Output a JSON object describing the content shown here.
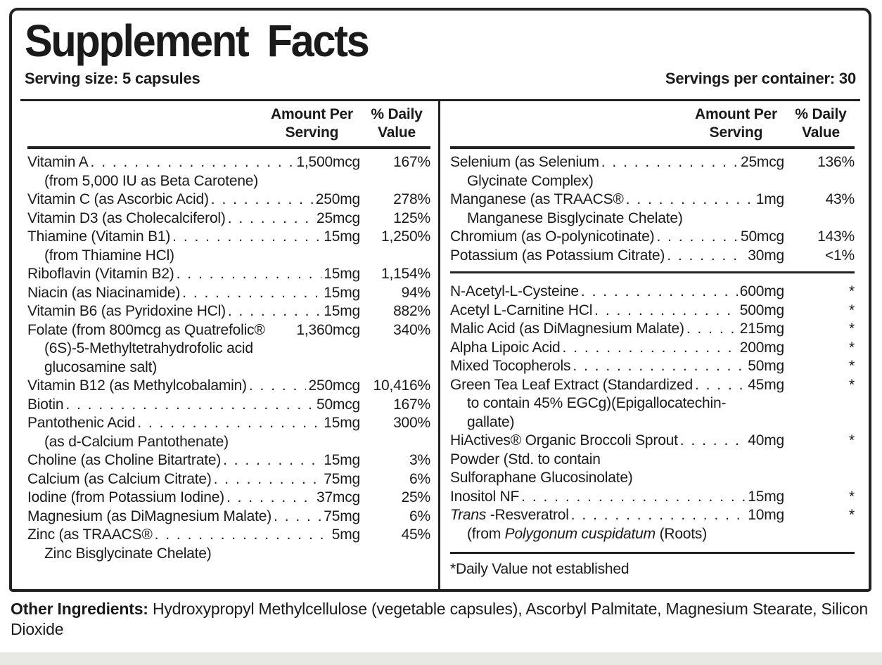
{
  "title": "Supplement Facts",
  "serving_size": "Serving size: 5 capsules",
  "servings_per_container": "Servings per container: 30",
  "column_headers": {
    "amount_line1": "Amount Per",
    "amount_line2": "Serving",
    "dv_line1": "% Daily",
    "dv_line2": "Value"
  },
  "left_rows": [
    {
      "name": "Vitamin A",
      "amount": "1,500mcg",
      "dv": "167%",
      "subs": [
        {
          "text": "(from 5,000 IU as Beta Carotene)"
        }
      ]
    },
    {
      "name": "Vitamin C (as Ascorbic Acid)",
      "amount": "250mg",
      "dv": "278%"
    },
    {
      "name": "Vitamin D3 (as Cholecalciferol)",
      "amount": "25mcg",
      "dv": "125%"
    },
    {
      "name": "Thiamine (Vitamin B1)",
      "amount": "15mg",
      "dv": "1,250%",
      "subs": [
        {
          "text": "(from Thiamine HCl)"
        }
      ]
    },
    {
      "name": "Riboflavin (Vitamin B2)",
      "amount": "15mg",
      "dv": "1,154%"
    },
    {
      "name": "Niacin (as Niacinamide)",
      "amount": "15mg",
      "dv": "94%"
    },
    {
      "name": "Vitamin B6 (as Pyridoxine HCl)",
      "amount": "15mg",
      "dv": "882%"
    },
    {
      "name": "Folate (from 800mcg as Quatrefolic®",
      "amount": "1,360mcg",
      "dv": "340%",
      "dots": false,
      "subs": [
        {
          "text": "(6S)-5-Methyltetrahydrofolic acid"
        },
        {
          "text": "glucosamine salt)"
        }
      ]
    },
    {
      "name": "Vitamin B12 (as Methylcobalamin)",
      "amount": "250mcg",
      "dv": "10,416%"
    },
    {
      "name": "Biotin",
      "amount": "50mcg",
      "dv": "167%"
    },
    {
      "name": "Pantothenic Acid",
      "amount": "15mg",
      "dv": "300%",
      "subs": [
        {
          "text": "(as d-Calcium Pantothenate)"
        }
      ]
    },
    {
      "name": "Choline (as Choline Bitartrate)",
      "amount": "15mg",
      "dv": "3%"
    },
    {
      "name": "Calcium (as Calcium Citrate)",
      "amount": "75mg",
      "dv": "6%"
    },
    {
      "name": "Iodine (from Potassium Iodine)",
      "amount": "37mcg",
      "dv": "25%"
    },
    {
      "name": "Magnesium (as DiMagnesium Malate)",
      "amount": "75mg",
      "dv": "6%"
    },
    {
      "name": "Zinc (as TRAACS®",
      "amount": "5mg",
      "dv": "45%",
      "subs": [
        {
          "text": "Zinc Bisglycinate Chelate)"
        }
      ]
    }
  ],
  "right_sections": [
    {
      "rows": [
        {
          "name": "Selenium (as Selenium",
          "amount": "25mcg",
          "dv": "136%",
          "subs": [
            {
              "text": "Glycinate Complex)"
            }
          ]
        },
        {
          "name": "Manganese (as TRAACS®",
          "amount": "1mg",
          "dv": "43%",
          "subs": [
            {
              "text": "Manganese Bisglycinate Chelate)"
            }
          ]
        },
        {
          "name": "Chromium (as O-polynicotinate)",
          "amount": "50mcg",
          "dv": "143%"
        },
        {
          "name": "Potassium (as Potassium Citrate)",
          "amount": "30mg",
          "dv": "<1%"
        }
      ]
    },
    {
      "rows": [
        {
          "name": "N-Acetyl-L-Cysteine",
          "amount": "600mg",
          "dv": "*"
        },
        {
          "name": "Acetyl L-Carnitine HCl",
          "amount": "500mg",
          "dv": "*"
        },
        {
          "name": "Malic Acid (as DiMagnesium Malate)",
          "amount": "215mg",
          "dv": "*"
        },
        {
          "name": "Alpha Lipoic Acid",
          "amount": "200mg",
          "dv": "*"
        },
        {
          "name": "Mixed Tocopherols",
          "amount": "50mg",
          "dv": "*"
        },
        {
          "name": "Green Tea Leaf Extract (Standardized",
          "amount": "45mg",
          "dv": "*",
          "subs": [
            {
              "text": "to contain 45% EGCg)(Epigallocatechin-"
            },
            {
              "text": "gallate)"
            }
          ]
        },
        {
          "name": "HiActives® Organic Broccoli Sprout",
          "amount": "40mg",
          "dv": "*",
          "subs": [
            {
              "text": "Powder (Std. to contain",
              "indent": false
            },
            {
              "text": "Sulforaphane Glucosinolate)",
              "indent": false
            }
          ]
        },
        {
          "name": "Inositol NF",
          "amount": "15mg",
          "dv": "*"
        },
        {
          "name": [
            {
              "t": "Trans",
              "i": true
            },
            {
              "t": " -Resveratrol"
            }
          ],
          "amount": "10mg",
          "dv": "*",
          "subs": [
            {
              "text": [
                {
                  "t": "(from "
                },
                {
                  "t": "Polygonum cuspidatum",
                  "i": true
                },
                {
                  "t": " (Roots)"
                }
              ]
            }
          ]
        }
      ]
    }
  ],
  "footnote": "*Daily Value not established",
  "other_ingredients_label": "Other Ingredients:",
  "other_ingredients_text": " Hydroxypropyl Methylcellulose (vegetable capsules), Ascorbyl Palmitate, Magnesium Stearate, Silicon Dioxide",
  "colors": {
    "text": "#1a1a1a",
    "border": "#222222",
    "background": "#ffffff",
    "bottom_strip": "#e8e8e5"
  }
}
